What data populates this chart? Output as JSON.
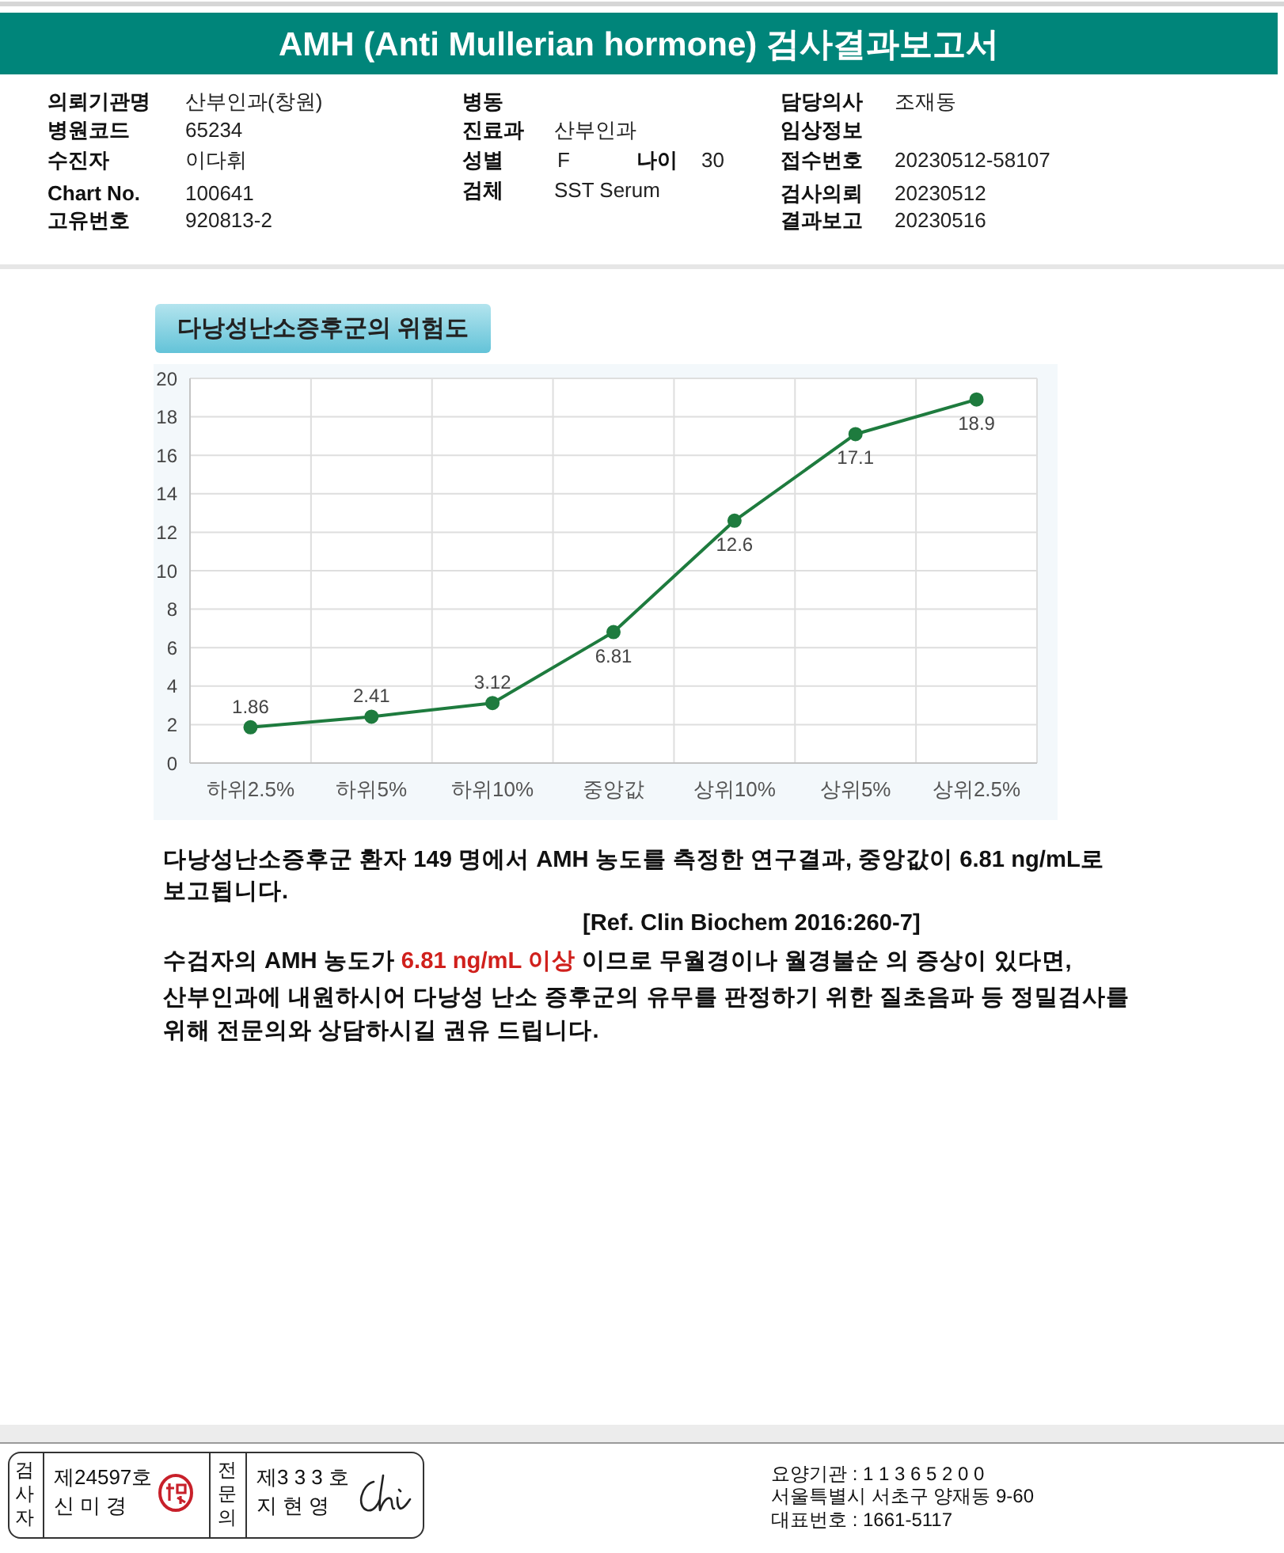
{
  "chart_data": {
    "type": "line",
    "title": "AMH (Anti Mullerian hormone) 검사결과보고서",
    "subtitle": "다낭성난소증후군의 위험도",
    "categories": [
      "하위2.5%",
      "하위5%",
      "하위10%",
      "중앙값",
      "상위10%",
      "상위5%",
      "상위2.5%"
    ],
    "series": [
      {
        "color": "#1e7b3e",
        "values": [
          1.86,
          2.41,
          3.12,
          6.81,
          12.6,
          17.1,
          18.9
        ]
      }
    ],
    "ylim": [
      0,
      20
    ],
    "yticks": [
      0,
      2,
      4,
      6,
      8,
      10,
      12,
      14,
      16,
      18,
      20
    ],
    "grid": true,
    "marker": "circle",
    "line_style": "solid",
    "data_labels": true,
    "annotations": [
      "의뢰기관명",
      "산부인과(창원)",
      "병원코드",
      "65234",
      "수진자",
      "이다휘",
      "Chart No.",
      "100641",
      "고유번호",
      "920813-2",
      "병동",
      "진료과",
      "산부인과",
      "성별",
      "F",
      "나이",
      "30",
      "검체",
      "SST Serum",
      "담당의사",
      "조재동",
      "임상정보",
      "접수번호",
      "20230512-58107",
      "검사의뢰",
      "20230512",
      "결과보고",
      "20230516",
      "다낭성난소증후군 환자 149 명에서 AMH 농도를 측정한 연구결과, 중앙값이 6.81 ng/mL로",
      "보고됩니다.",
      "[Ref. Clin Biochem 2016:260-7]",
      "수검자의 AMH 농도가 ",
      "6.81 ng/mL 이상",
      " 이므로 무월경이나 월경불순 의 증상이 있다면,",
      "산부인과에 내원하시어 다낭성 난소 증후군의 유무를 판정하기 위한 질초음파 등 정밀검사를",
      "위해 전문의와 상담하시길 권유 드립니다.",
      "검사자",
      "제24597호",
      "신 미 경",
      "전문의",
      "제3 3 3 호",
      "지 현 영",
      "요양기관 : 1 1 3 6 5 2 0 0",
      "서울특별시 서초구 양재동 9-60",
      "대표번호 : 1661-5117"
    ]
  }
}
